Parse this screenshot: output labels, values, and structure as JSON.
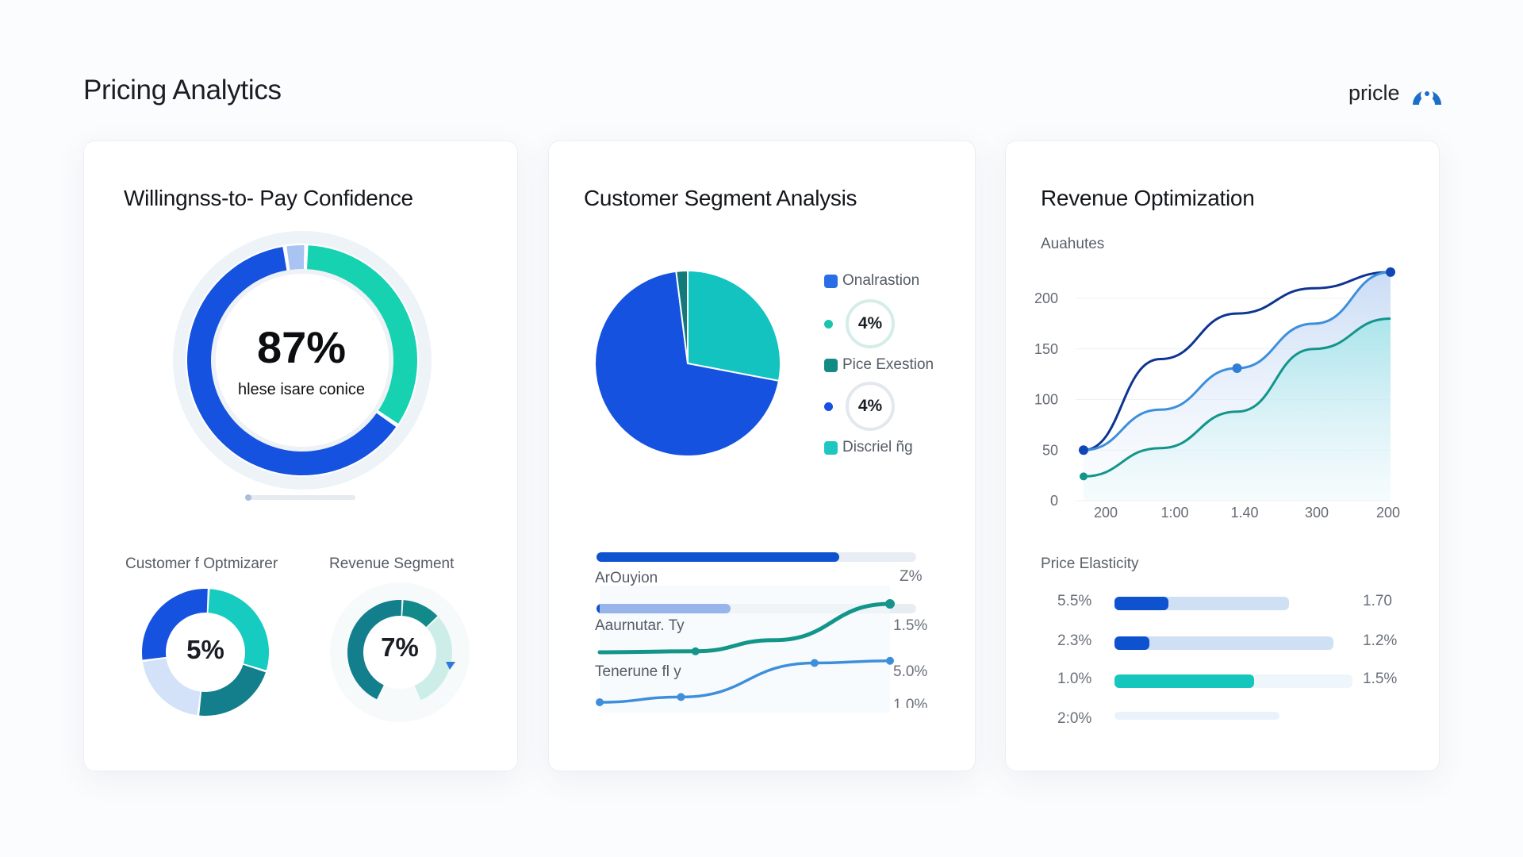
{
  "header": {
    "title": "Pricing Analytics",
    "brand": "pricle",
    "brand_icon": "logo-badge-icon"
  },
  "colors": {
    "blue": "#1552e0",
    "midblue": "#3d8fdc",
    "navy": "#0d3591",
    "teal": "#16cdb5",
    "darkteal": "#138a8a",
    "light": "#cfe0f7",
    "track": "#e8edf3"
  },
  "wtp": {
    "title": "Willingnss-to- Pay Confidence",
    "value": "87%",
    "subtitle": "hlese isare conice",
    "slider_value": 0.03,
    "segments": [
      {
        "value": 34,
        "color": "#16d2b0"
      },
      {
        "value": 63,
        "color": "#1552e0"
      },
      {
        "value": 3,
        "color": "#a9c4f2"
      }
    ],
    "mini": [
      {
        "label": "Customer f Optmizarer",
        "value": "5%",
        "segments": [
          {
            "value": 29,
            "color": "#16cbc0"
          },
          {
            "value": 22,
            "color": "#137f8c"
          },
          {
            "value": 21,
            "color": "#d3e2f8"
          },
          {
            "value": 28,
            "color": "#1552e0"
          }
        ]
      },
      {
        "label": "Revenue Segment",
        "value": "7%",
        "segments": [
          {
            "value": 12,
            "color": "#138a8a"
          },
          {
            "value": 30,
            "color": "#cdeee8"
          },
          {
            "value": 13,
            "color": "#ffffff"
          },
          {
            "value": 43,
            "color": "#137f8c"
          }
        ]
      }
    ]
  },
  "segment": {
    "title": "Customer Segment Analysis",
    "chart_data": {
      "type": "pie",
      "values": [
        28,
        70,
        2
      ],
      "colors": [
        "#12c3c0",
        "#1552e0",
        "#137a7a"
      ]
    },
    "legend": [
      {
        "type": "swatch",
        "label": "Onalrastion",
        "color": "#2a6ee6"
      },
      {
        "type": "ring",
        "label": "4%",
        "color": "#1ec3b0",
        "ring": "#d5ede8"
      },
      {
        "type": "swatch",
        "label": "Pice Exestion",
        "color": "#138a84"
      },
      {
        "type": "ring",
        "label": "4%",
        "color": "#1552e0",
        "ring": "#e3e8ef"
      },
      {
        "type": "swatch",
        "label": "Discriel ñg",
        "color": "#1ec8c0"
      }
    ],
    "bars": [
      {
        "value": 0.76,
        "color": "#0f52cf"
      },
      {
        "value": 0.42,
        "color": "#0f52cf"
      }
    ],
    "rows": [
      {
        "label": "ArOuyion",
        "value": "Z%"
      },
      {
        "label": "Aaurnutar. Ty",
        "value": "1.5%"
      },
      {
        "label": "Tenerune fl y",
        "value": "5.0%"
      },
      {
        "label": "",
        "value": "1.0%"
      }
    ],
    "lines": [
      {
        "name": "teal",
        "color": "#13958a",
        "points": [
          [
            0,
            0
          ],
          [
            0.33,
            0.02
          ],
          [
            0.6,
            0.25
          ],
          [
            1,
            1
          ]
        ]
      },
      {
        "name": "blue",
        "color": "#3d8fdc",
        "points": [
          [
            0,
            0
          ],
          [
            0.28,
            0.12
          ],
          [
            0.74,
            0.9
          ],
          [
            1,
            0.95
          ]
        ]
      }
    ]
  },
  "revenue": {
    "title": "Revenue Optimization",
    "chart_data": {
      "type": "line",
      "ylabel": "Auahutes",
      "ylim": [
        0,
        200
      ],
      "yticks": [
        "200",
        "150",
        "100",
        "50",
        "0"
      ],
      "categories": [
        "200",
        "1:00",
        "1.40",
        "300",
        "200"
      ],
      "series": [
        {
          "name": "navy",
          "color": "#0d3591",
          "values": [
            50,
            140,
            185,
            210,
            226
          ]
        },
        {
          "name": "blue",
          "color": "#3d8fdc",
          "values": [
            50,
            90,
            131,
            175,
            226
          ]
        },
        {
          "name": "teal",
          "color": "#13958a",
          "values": [
            24,
            52,
            88,
            150,
            180
          ]
        }
      ]
    },
    "elasticity": {
      "title": "Price Elasticity",
      "rows": [
        {
          "label": "5.5%",
          "value": "1.70",
          "track": 0.55,
          "fill": 0.17,
          "color": "#0f52cf",
          "trackColor": "#cfe0f5"
        },
        {
          "label": "2.3%",
          "value": "1.2%",
          "track": 0.69,
          "fill": 0.11,
          "color": "#0f52cf",
          "trackColor": "#cfe0f5"
        },
        {
          "label": "1.0%",
          "value": "1.5%",
          "track": 0.75,
          "fill": 0.44,
          "color": "#14c6bb",
          "trackColor": "#eef5fb"
        },
        {
          "label": "2:0%",
          "value": "",
          "track": 0.52,
          "fill": 0,
          "color": "#0f52cf",
          "trackColor": "#eaf2fb"
        }
      ]
    }
  }
}
